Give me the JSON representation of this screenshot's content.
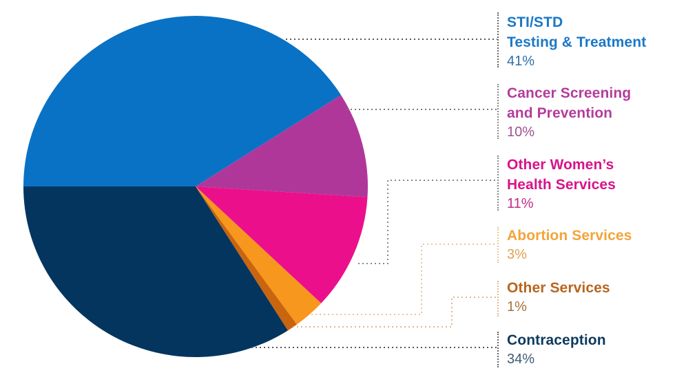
{
  "chart_data": {
    "type": "pie",
    "title": "",
    "start_angle_deg": 180,
    "direction": "clockwise",
    "slices": [
      {
        "label": "STI/STD Testing & Treatment",
        "value": 41,
        "color": "#0a72c4"
      },
      {
        "label": "Cancer Screening and Prevention",
        "value": 10,
        "color": "#b0379a"
      },
      {
        "label": "Other Women’s Health Services",
        "value": 11,
        "color": "#ec0f8c"
      },
      {
        "label": "Abortion Services",
        "value": 3,
        "color": "#f7971e"
      },
      {
        "label": "Other Services",
        "value": 1,
        "color": "#c9650f"
      },
      {
        "label": "Contraception",
        "value": 34,
        "color": "#04355f"
      }
    ],
    "legend_position": "right"
  },
  "legend": [
    {
      "label": "STI/STD\nTesting & Treatment",
      "value": "41%",
      "label_color": "#1a78c8",
      "value_color": "#2d6fa8"
    },
    {
      "label": "Cancer Screening\nand Prevention",
      "value": "10%",
      "label_color": "#b43c9c",
      "value_color": "#a0508f"
    },
    {
      "label": "Other Women’s\nHealth Services",
      "value": "11%",
      "label_color": "#d8138a",
      "value_color": "#c02a86"
    },
    {
      "label": "Abortion Services",
      "value": "3%",
      "label_color": "#f3a43a",
      "value_color": "#e0a250"
    },
    {
      "label": "Other Services",
      "value": "1%",
      "label_color": "#b8651f",
      "value_color": "#a8703d"
    },
    {
      "label": "Contraception",
      "value": "34%",
      "label_color": "#0c3a5f",
      "value_color": "#3d5a74"
    }
  ]
}
